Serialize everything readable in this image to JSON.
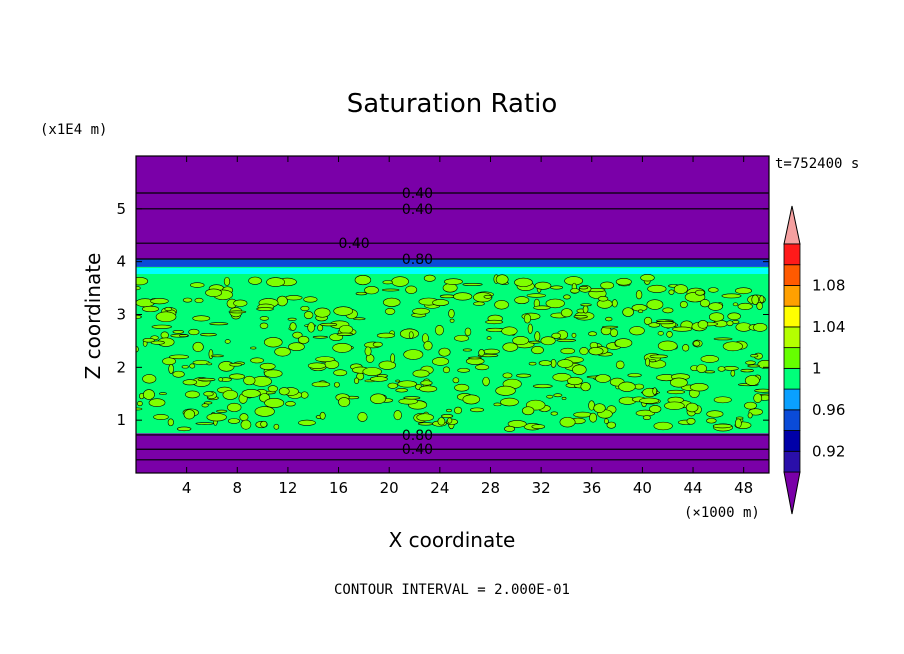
{
  "chart_data": {
    "type": "heatmap",
    "title": "Saturation Ratio",
    "xlabel": "X coordinate",
    "ylabel": "Z coordinate",
    "x_unit_label": "(×1000 m)",
    "y_unit_label": "(x1E4 m)",
    "time_label": "t=752400 s",
    "footer": "CONTOUR INTERVAL = 2.000E-01",
    "xlim": [
      0,
      50
    ],
    "ylim": [
      0,
      6
    ],
    "x_ticks": [
      4,
      8,
      12,
      16,
      20,
      24,
      28,
      32,
      36,
      40,
      44,
      48
    ],
    "y_ticks": [
      1,
      2,
      3,
      4,
      5
    ],
    "colorbar": {
      "labels": [
        "0.92",
        "0.96",
        "1",
        "1.04",
        "1.08"
      ],
      "colors": [
        "#7a00a8",
        "#2a0faa",
        "#0000a8",
        "#0a4bd8",
        "#0aa0ff",
        "#00ff7a",
        "#66ff00",
        "#b4ff00",
        "#ffff00",
        "#ffa000",
        "#ff5a00",
        "#ff1a1a",
        "#f5a0a0"
      ]
    },
    "layers": [
      {
        "z0": 5.3,
        "z1": 6.0,
        "value": "<0.92",
        "color": "#7a00a8"
      },
      {
        "z0": 4.35,
        "z1": 5.3,
        "value": "<0.92",
        "color": "#7a00a8"
      },
      {
        "z0": 4.05,
        "z1": 4.35,
        "value": "<0.92",
        "color": "#7a00a8"
      },
      {
        "z0": 3.9,
        "z1": 4.05,
        "value": "0.94-0.98",
        "color": "#0a4bd8"
      },
      {
        "z0": 0.75,
        "z1": 3.9,
        "value": "0.98-1.02",
        "color": "#00ff7a"
      },
      {
        "z0": 0.0,
        "z1": 0.75,
        "value": "<0.92",
        "color": "#7a00a8"
      }
    ],
    "contour_lines": [
      {
        "z": 5.3,
        "label": "0.40",
        "label_x": 21
      },
      {
        "z": 5.0,
        "label": "0.40",
        "label_x": 21
      },
      {
        "z": 4.35,
        "label": "0.40",
        "label_x": 16
      },
      {
        "z": 4.05,
        "label": "0.80",
        "label_x": 21
      },
      {
        "z": 0.72,
        "label": "0.80",
        "label_x": 21
      },
      {
        "z": 0.45,
        "label": "0.40",
        "label_x": 21
      },
      {
        "z": 0.25,
        "label": "",
        "label_x": 0
      }
    ]
  }
}
